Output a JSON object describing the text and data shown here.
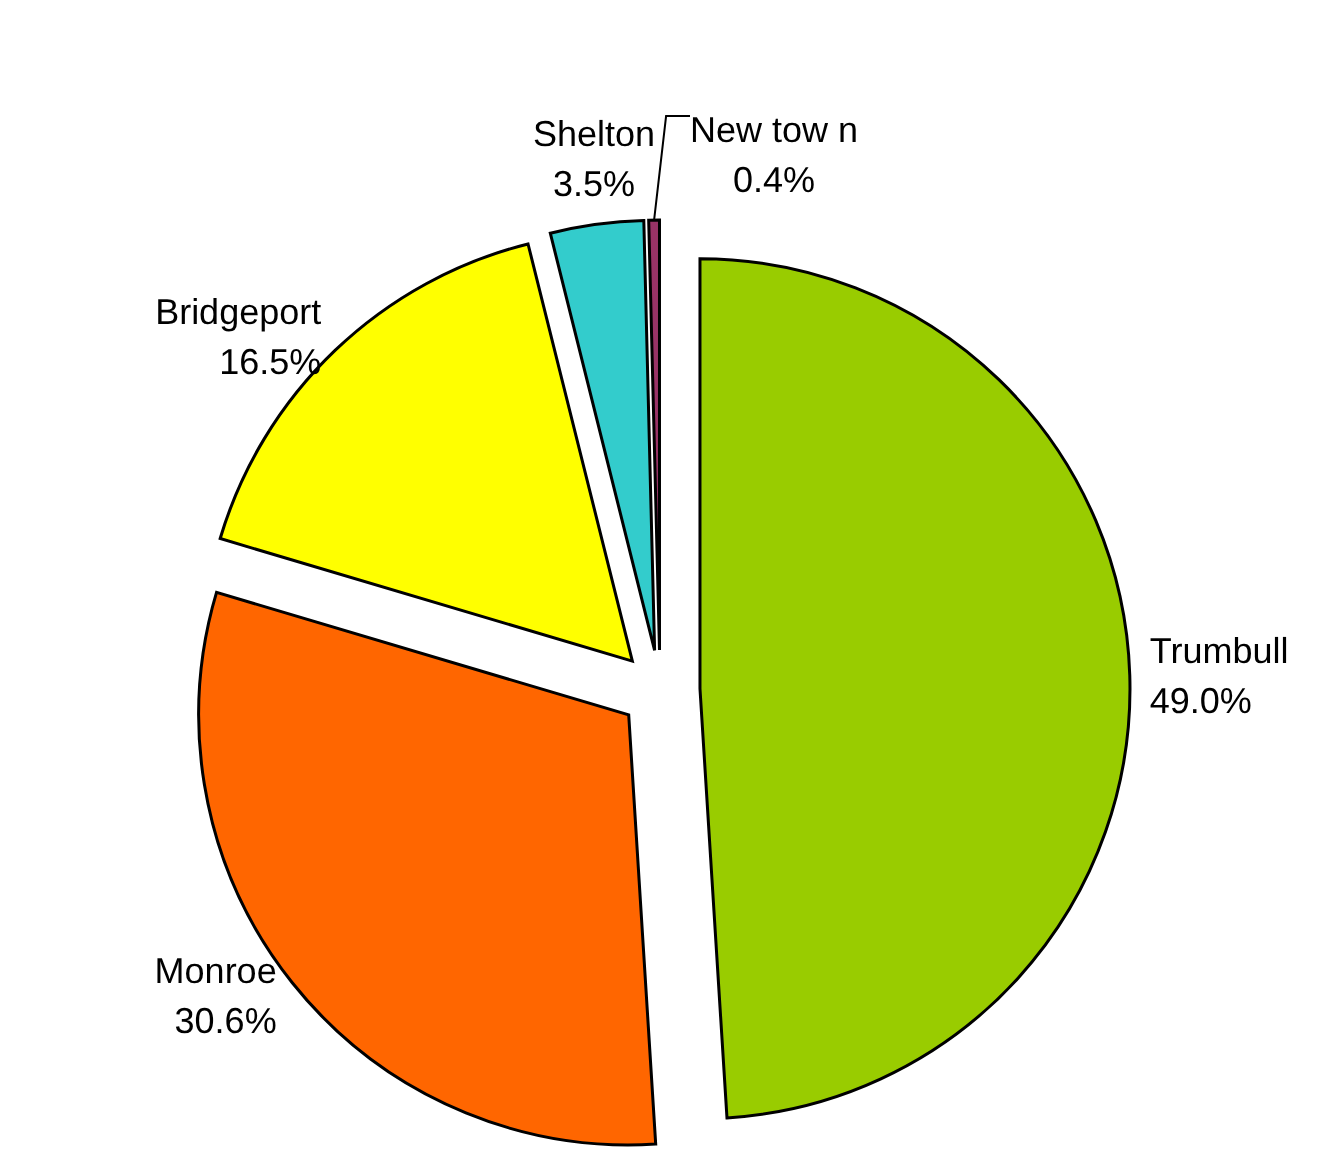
{
  "chart_data": {
    "type": "pie",
    "categories": [
      "Trumbull",
      "Monroe",
      "Bridgeport",
      "Shelton",
      "New tow n"
    ],
    "values": [
      49.0,
      30.6,
      16.5,
      3.5,
      0.4
    ],
    "colors": [
      "#99cc00",
      "#ff6600",
      "#ffff00",
      "#33cccc",
      "#993366"
    ],
    "value_labels": [
      "49.0%",
      "30.6%",
      "16.5%",
      "3.5%",
      "0.4%"
    ]
  }
}
